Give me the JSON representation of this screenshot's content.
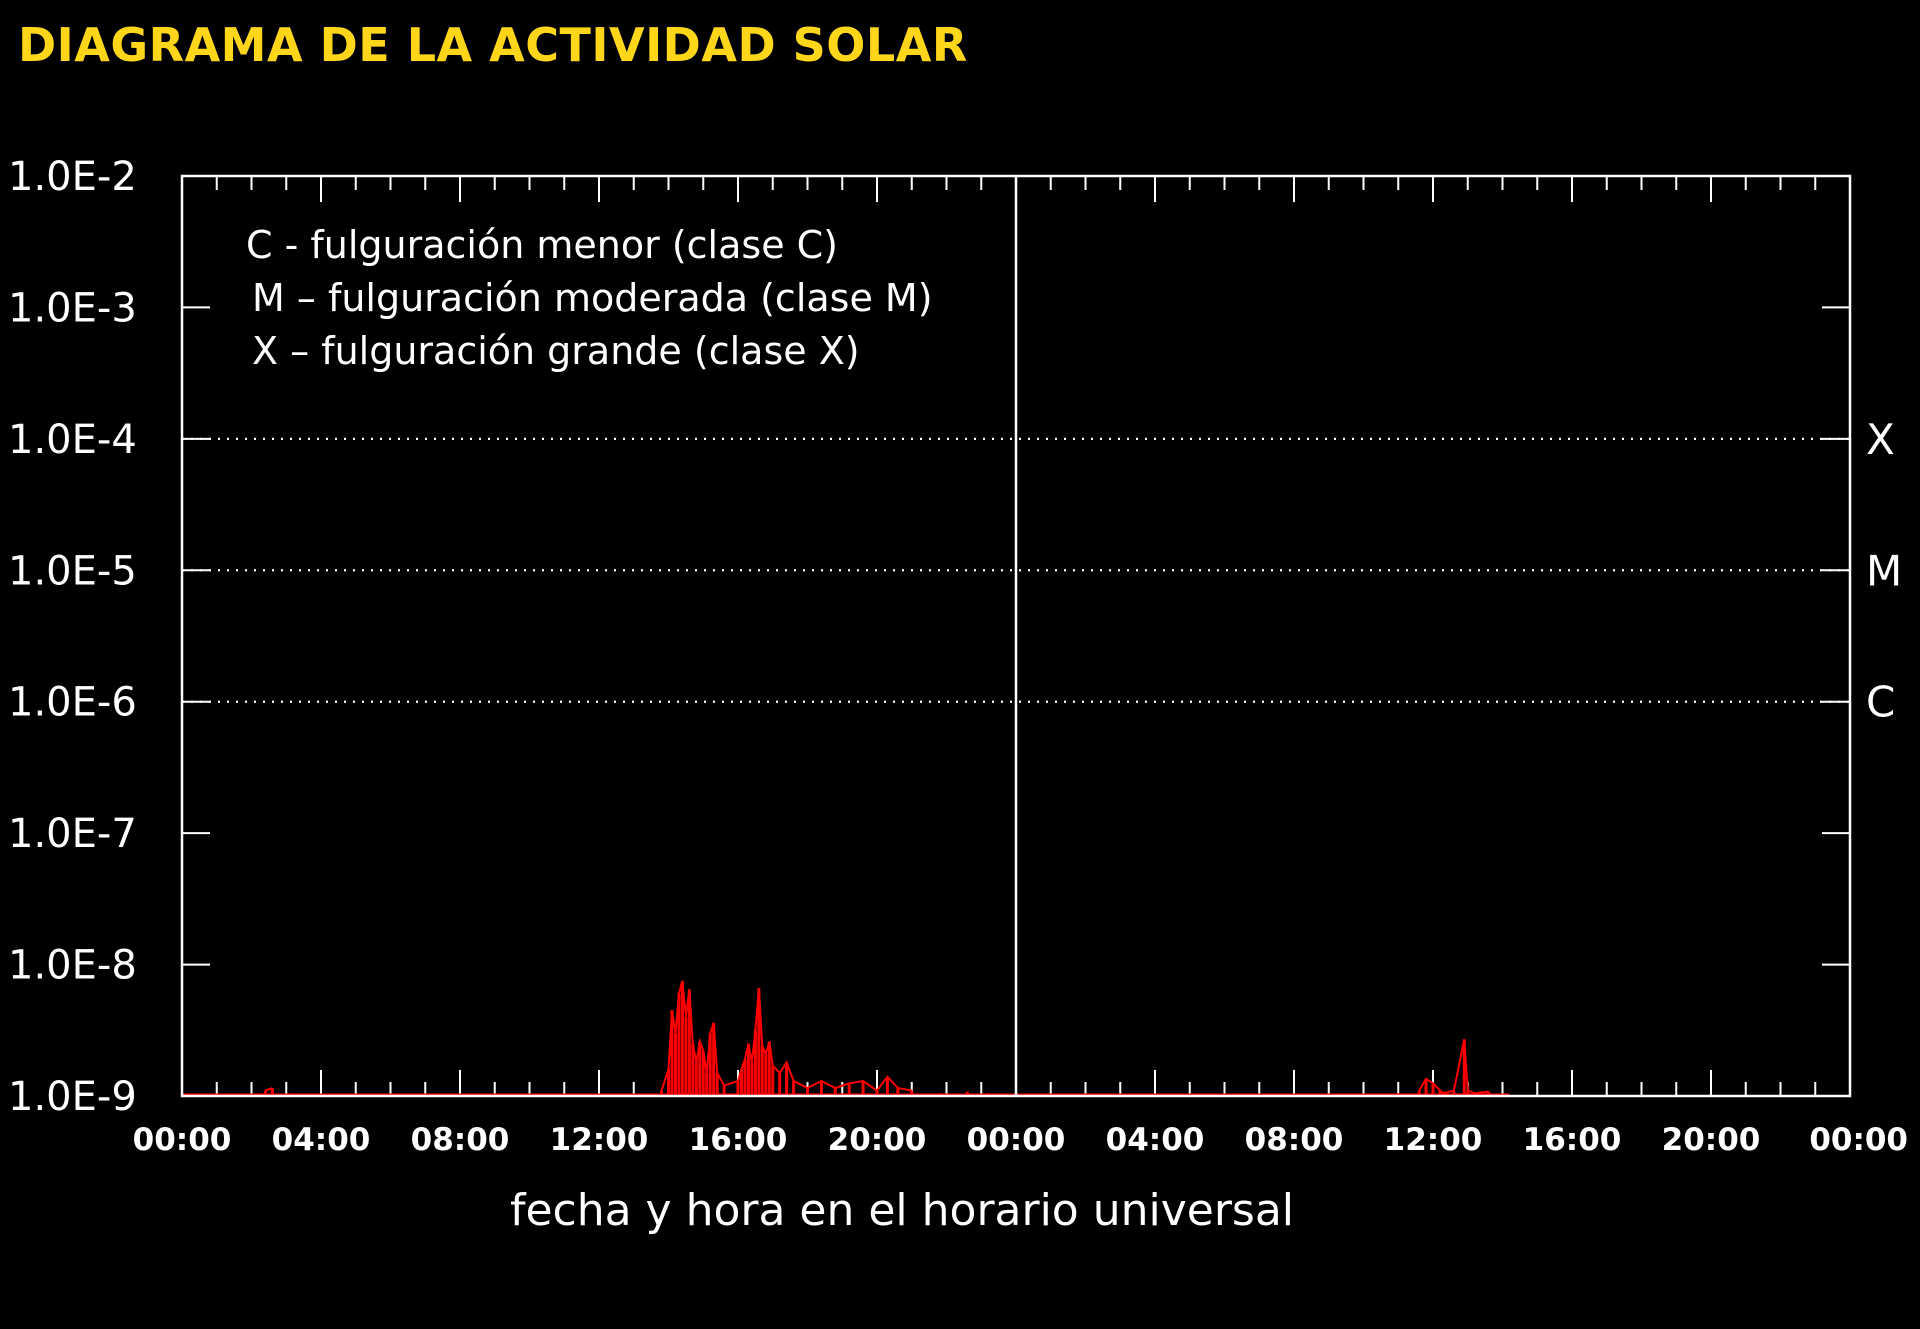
{
  "header": {
    "title": "DIAGRAMA DE LA ACTIVIDAD SOLAR"
  },
  "chart_data": {
    "type": "line",
    "title": "DIAGRAMA DE LA ACTIVIDAD SOLAR",
    "xlabel": "fecha y hora en el horario universal",
    "ylabel": "",
    "yscale": "log",
    "ylim": [
      1e-09,
      0.01
    ],
    "y_ticks": [
      "1.0E-2",
      "1.0E-3",
      "1.0E-4",
      "1.0E-5",
      "1.0E-6",
      "1.0E-7",
      "1.0E-8",
      "1.0E-9"
    ],
    "x_ticks": [
      "00:00",
      "04:00",
      "08:00",
      "12:00",
      "16:00",
      "20:00",
      "00:00",
      "04:00",
      "08:00",
      "12:00",
      "16:00",
      "20:00",
      "00:00"
    ],
    "xlim_hours": [
      0,
      48
    ],
    "day_boundary_hour": 24,
    "class_levels": [
      {
        "label": "X",
        "value": 0.0001
      },
      {
        "label": "M",
        "value": 1e-05
      },
      {
        "label": "C",
        "value": 1e-06
      }
    ],
    "legend_entries": [
      "C - fulguración menor (clase C)",
      "M – fulguración moderada (clase M)",
      "X – fulguración grande (clase X)"
    ],
    "grid": "dotted at class levels",
    "series": [
      {
        "color": "#ff0000",
        "points": [
          [
            2.4,
            1.1e-09
          ],
          [
            2.6,
            1.15e-09
          ],
          [
            3.2,
            1.05e-09
          ],
          [
            13.8,
            1.1e-09
          ],
          [
            14.0,
            1.6e-09
          ],
          [
            14.1,
            4.5e-09
          ],
          [
            14.2,
            3e-09
          ],
          [
            14.3,
            6e-09
          ],
          [
            14.4,
            7.5e-09
          ],
          [
            14.5,
            4e-09
          ],
          [
            14.6,
            6.5e-09
          ],
          [
            14.7,
            2.5e-09
          ],
          [
            14.8,
            1.8e-09
          ],
          [
            14.9,
            2.6e-09
          ],
          [
            15.0,
            2.2e-09
          ],
          [
            15.1,
            1.5e-09
          ],
          [
            15.2,
            3e-09
          ],
          [
            15.3,
            3.6e-09
          ],
          [
            15.4,
            1.5e-09
          ],
          [
            15.6,
            1.2e-09
          ],
          [
            16.0,
            1.3e-09
          ],
          [
            16.1,
            1.6e-09
          ],
          [
            16.2,
            1.9e-09
          ],
          [
            16.3,
            2.5e-09
          ],
          [
            16.4,
            1.8e-09
          ],
          [
            16.5,
            3.2e-09
          ],
          [
            16.6,
            6.6e-09
          ],
          [
            16.7,
            2.4e-09
          ],
          [
            16.8,
            2.1e-09
          ],
          [
            16.9,
            2.6e-09
          ],
          [
            17.0,
            1.7e-09
          ],
          [
            17.2,
            1.5e-09
          ],
          [
            17.4,
            1.8e-09
          ],
          [
            17.6,
            1.3e-09
          ],
          [
            18.0,
            1.15e-09
          ],
          [
            18.4,
            1.3e-09
          ],
          [
            18.8,
            1.15e-09
          ],
          [
            19.2,
            1.25e-09
          ],
          [
            19.6,
            1.3e-09
          ],
          [
            20.0,
            1.1e-09
          ],
          [
            20.3,
            1.4e-09
          ],
          [
            20.6,
            1.15e-09
          ],
          [
            21.0,
            1.1e-09
          ],
          [
            21.8,
            1.05e-09
          ],
          [
            22.6,
            1.08e-09
          ],
          [
            23.2,
            1.05e-09
          ],
          [
            35.0,
            1.05e-09
          ],
          [
            35.6,
            1.1e-09
          ],
          [
            35.8,
            1.35e-09
          ],
          [
            36.0,
            1.25e-09
          ],
          [
            36.2,
            1.1e-09
          ],
          [
            36.3,
            1.05e-09
          ],
          [
            36.6,
            1.1e-09
          ],
          [
            36.9,
            2.7e-09
          ],
          [
            37.0,
            1.1e-09
          ],
          [
            37.2,
            1.05e-09
          ],
          [
            37.6,
            1.08e-09
          ]
        ]
      }
    ]
  }
}
